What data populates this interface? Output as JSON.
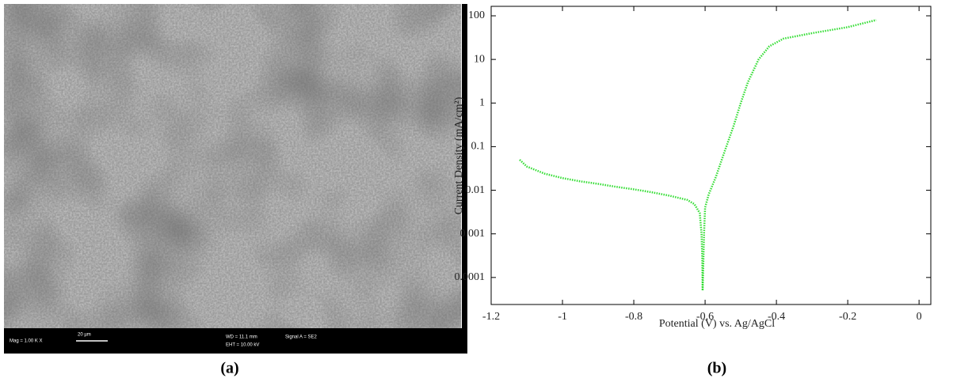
{
  "panel_a": {
    "label": "(a)",
    "info": [
      "Mag = 1.00 K X",
      "20 µm",
      "WD = 11.1 mm",
      "EHT = 10.00 kV",
      "Signal A = SE2"
    ]
  },
  "panel_b": {
    "label": "(b)"
  },
  "chart_data": {
    "type": "line",
    "x_label": "Potential (V) vs. Ag/AgCl",
    "y_label": "Current Density (mA/cm²)",
    "log_y": true,
    "color": "#33dd33",
    "xlim": [
      -1.2,
      0.033
    ],
    "ylim": [
      2.4e-05,
      165
    ],
    "xticks": [
      -1.2,
      -1,
      -0.8,
      -0.6,
      -0.4,
      -0.2,
      0
    ],
    "yticks": [
      0.0001,
      0.001,
      0.01,
      0.1,
      1,
      10,
      100
    ],
    "x": [
      -1.12,
      -1.1,
      -1.05,
      -1.0,
      -0.95,
      -0.9,
      -0.85,
      -0.8,
      -0.75,
      -0.7,
      -0.65,
      -0.63,
      -0.615,
      -0.61,
      -0.608,
      -0.607,
      -0.605,
      -0.603,
      -0.6,
      -0.59,
      -0.57,
      -0.55,
      -0.52,
      -0.5,
      -0.48,
      -0.45,
      -0.42,
      -0.38,
      -0.3,
      -0.2,
      -0.12
    ],
    "values": [
      0.05,
      0.035,
      0.024,
      0.019,
      0.016,
      0.014,
      0.012,
      0.0105,
      0.009,
      0.0075,
      0.006,
      0.0048,
      0.003,
      0.001,
      0.0003,
      5e-05,
      0.0002,
      0.001,
      0.004,
      0.008,
      0.02,
      0.06,
      0.3,
      1,
      3,
      10,
      20,
      30,
      40,
      55,
      80
    ]
  }
}
